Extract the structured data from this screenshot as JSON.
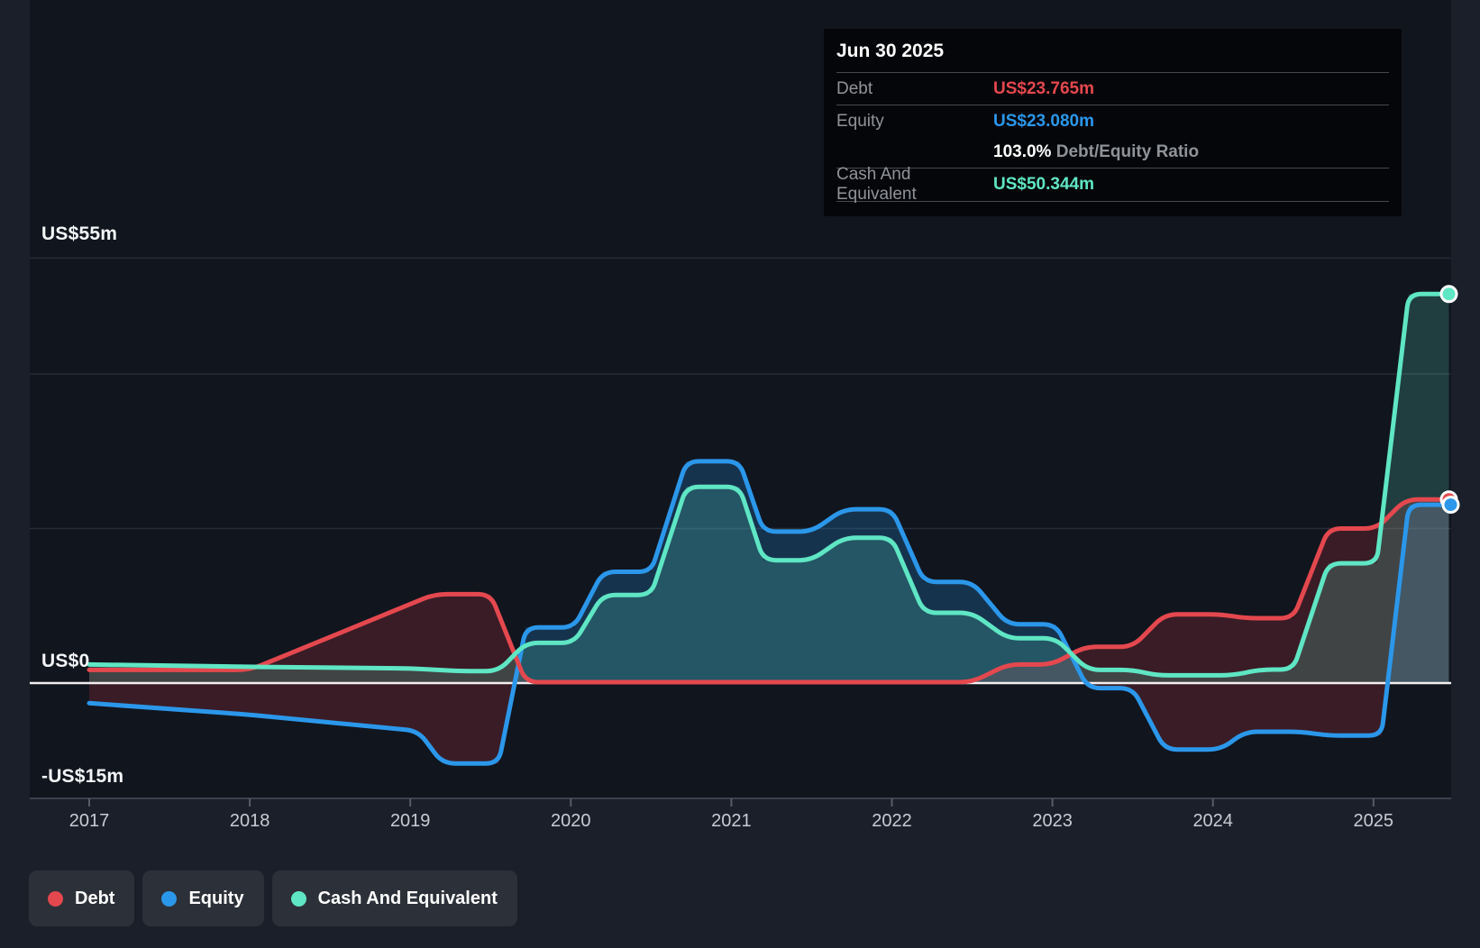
{
  "tooltip": {
    "date": "Jun 30 2025",
    "debt_label": "Debt",
    "debt_value": "US$23.765m",
    "equity_label": "Equity",
    "equity_value": "US$23.080m",
    "ratio_value": "103.0%",
    "ratio_label": "Debt/Equity Ratio",
    "cash_label": "Cash And Equivalent",
    "cash_value": "US$50.344m"
  },
  "legend": {
    "items": [
      {
        "label": "Debt",
        "color": "#e4484e"
      },
      {
        "label": "Equity",
        "color": "#2b97ea"
      },
      {
        "label": "Cash And Equivalent",
        "color": "#5fe6c4"
      }
    ]
  },
  "chart_data": {
    "type": "area",
    "x_axis": {
      "labels": [
        "2017",
        "2018",
        "2019",
        "2020",
        "2021",
        "2022",
        "2023",
        "2024",
        "2025"
      ],
      "start_year": 2017,
      "end": 2025.5
    },
    "y_axis": {
      "unit": "US$m",
      "labels": [
        {
          "text": "US$55m",
          "value": 55
        },
        {
          "text": "US$0",
          "value": 0
        },
        {
          "text": "-US$15m",
          "value": -15
        }
      ],
      "gridline_values": [
        55,
        40,
        20
      ],
      "zero_value": 0,
      "min": -15,
      "max": 55
    },
    "series": [
      {
        "name": "Equity",
        "color": "#2b97ea",
        "fill_positive": "rgba(43,151,234,0.24)",
        "fill_negative": "rgba(223,62,68,0.20)",
        "final_value": 23.08,
        "points": [
          [
            2017.0,
            -2.6
          ],
          [
            2018.0,
            -4.1
          ],
          [
            2019.05,
            -6.2
          ],
          [
            2019.2,
            -10.4
          ],
          [
            2019.55,
            -10.4
          ],
          [
            2019.72,
            7.2
          ],
          [
            2020.02,
            7.2
          ],
          [
            2020.2,
            14.4
          ],
          [
            2020.5,
            14.4
          ],
          [
            2020.72,
            28.7
          ],
          [
            2021.05,
            28.7
          ],
          [
            2021.2,
            19.6
          ],
          [
            2021.5,
            19.6
          ],
          [
            2021.7,
            22.5
          ],
          [
            2022.0,
            22.5
          ],
          [
            2022.2,
            13.1
          ],
          [
            2022.5,
            13.1
          ],
          [
            2022.72,
            7.6
          ],
          [
            2023.02,
            7.6
          ],
          [
            2023.22,
            -0.65
          ],
          [
            2023.5,
            -0.65
          ],
          [
            2023.7,
            -8.6
          ],
          [
            2024.05,
            -8.6
          ],
          [
            2024.2,
            -6.3
          ],
          [
            2024.55,
            -6.3
          ],
          [
            2024.72,
            -6.8
          ],
          [
            2025.05,
            -6.8
          ],
          [
            2025.22,
            23.08
          ],
          [
            2025.47,
            23.08
          ]
        ]
      },
      {
        "name": "Debt",
        "color": "#e4484e",
        "fill_positive": "rgba(223,62,68,0.20)",
        "fill_negative": "rgba(223,62,68,0.20)",
        "final_value": 23.765,
        "points": [
          [
            2017.0,
            1.7
          ],
          [
            2018.0,
            1.7
          ],
          [
            2019.15,
            11.5
          ],
          [
            2019.5,
            11.5
          ],
          [
            2019.72,
            0.12
          ],
          [
            2022.5,
            0.12
          ],
          [
            2022.72,
            2.4
          ],
          [
            2023.0,
            2.4
          ],
          [
            2023.2,
            4.7
          ],
          [
            2023.5,
            4.7
          ],
          [
            2023.7,
            8.9
          ],
          [
            2024.05,
            8.9
          ],
          [
            2024.2,
            8.4
          ],
          [
            2024.5,
            8.4
          ],
          [
            2024.72,
            20.0
          ],
          [
            2025.02,
            20.0
          ],
          [
            2025.2,
            23.765
          ],
          [
            2025.47,
            23.765
          ]
        ]
      },
      {
        "name": "Cash And Equivalent",
        "color": "#5fe6c4",
        "fill_positive": "rgba(95,230,196,0.20)",
        "fill_negative": "rgba(95,230,196,0.20)",
        "final_value": 50.344,
        "points": [
          [
            2017.0,
            2.4
          ],
          [
            2018.0,
            2.1
          ],
          [
            2019.0,
            1.9
          ],
          [
            2019.3,
            1.55
          ],
          [
            2019.55,
            1.55
          ],
          [
            2019.72,
            5.2
          ],
          [
            2020.02,
            5.2
          ],
          [
            2020.2,
            11.4
          ],
          [
            2020.5,
            11.4
          ],
          [
            2020.72,
            25.4
          ],
          [
            2021.05,
            25.4
          ],
          [
            2021.2,
            15.9
          ],
          [
            2021.5,
            15.9
          ],
          [
            2021.7,
            18.8
          ],
          [
            2022.0,
            18.8
          ],
          [
            2022.2,
            9.1
          ],
          [
            2022.5,
            9.1
          ],
          [
            2022.72,
            5.8
          ],
          [
            2023.02,
            5.8
          ],
          [
            2023.22,
            1.7
          ],
          [
            2023.5,
            1.7
          ],
          [
            2023.65,
            1.0
          ],
          [
            2024.12,
            1.0
          ],
          [
            2024.3,
            1.75
          ],
          [
            2024.5,
            1.75
          ],
          [
            2024.72,
            15.5
          ],
          [
            2025.02,
            15.5
          ],
          [
            2025.22,
            50.344
          ],
          [
            2025.47,
            50.344
          ]
        ]
      }
    ],
    "legend_position": "bottom-left",
    "grid": true
  }
}
